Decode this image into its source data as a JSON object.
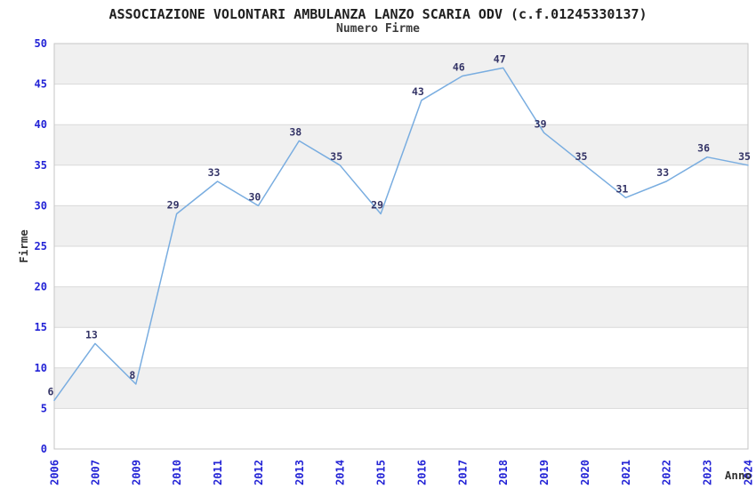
{
  "header": {
    "title": "ASSOCIAZIONE VOLONTARI AMBULANZA LANZO SCARIA ODV (c.f.01245330137)",
    "subtitle": "Numero Firme"
  },
  "chart_data": {
    "type": "line",
    "title": "ASSOCIAZIONE VOLONTARI AMBULANZA LANZO SCARIA ODV (c.f.01245330137)",
    "subtitle": "Numero Firme",
    "xlabel": "Anno",
    "ylabel": "Firme",
    "categories": [
      "2006",
      "2007",
      "2009",
      "2010",
      "2011",
      "2012",
      "2013",
      "2014",
      "2015",
      "2016",
      "2017",
      "2018",
      "2019",
      "2020",
      "2021",
      "2022",
      "2023",
      "2024"
    ],
    "values": [
      6,
      13,
      8,
      29,
      33,
      30,
      38,
      35,
      29,
      43,
      46,
      47,
      39,
      35,
      31,
      33,
      36,
      35
    ],
    "ylim": [
      0,
      50
    ],
    "ytick_step": 5,
    "ytick_labels": [
      "0",
      "5",
      "10",
      "15",
      "20",
      "25",
      "30",
      "35",
      "40",
      "45",
      "50"
    ],
    "grid": "horizontal gridlines with alternating shaded bands",
    "legend": "none",
    "point_labels_shown": true
  },
  "colors": {
    "line": "#79ADE0",
    "tick_label": "#2323D6",
    "data_label": "#333366",
    "axis_title": "#333333",
    "band": "#F0F0F0",
    "gridline": "#D9D9D9",
    "border": "#C6C6C6",
    "background": "#FFFFFF"
  }
}
